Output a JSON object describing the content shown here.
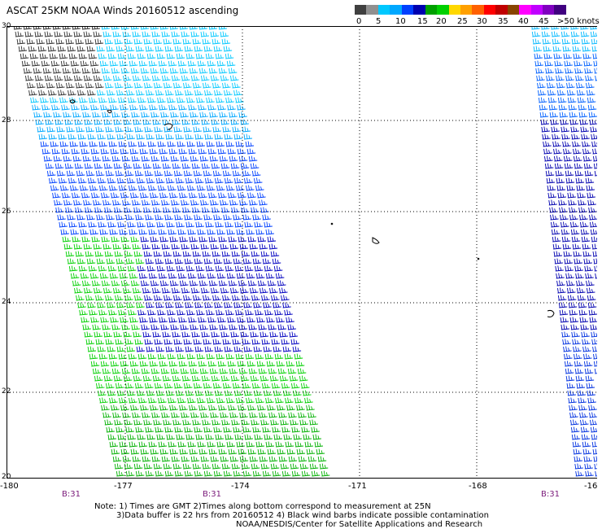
{
  "header": {
    "title": "ASCAT 25KM NOAA Winds 20160512 ascending"
  },
  "legend": {
    "colors": [
      "#404040",
      "#909090",
      "#00c8ff",
      "#00a8ff",
      "#0040ff",
      "#0000b0",
      "#00a000",
      "#00d000",
      "#ffd800",
      "#ffa000",
      "#ff6000",
      "#ff0000",
      "#c00000",
      "#884400",
      "#ff00ff",
      "#c000ff",
      "#8000c0",
      "#400080"
    ],
    "labels": [
      "0",
      "5",
      "10",
      "15",
      "20",
      "25",
      "30",
      "35",
      "40",
      "45",
      ">50 knots"
    ]
  },
  "axes": {
    "y_labels": [
      "30",
      "28",
      "26",
      "24",
      "22",
      "20"
    ],
    "x_labels": [
      "-180",
      "-177",
      "-174",
      "-171",
      "-168",
      "-16"
    ]
  },
  "time_marks": [
    "B:31",
    "B:31",
    "B:31"
  ],
  "notes": {
    "line1": "Note: 1) Times are GMT 2)Times along bottom correspond to measurement at 25N",
    "line2": "3)Data buffer is 22 hrs from 20160512 4) Black wind barbs indicate possible contamination",
    "line3": "NOAA/NESDIS/Center for Satellite Applications and Research"
  }
}
